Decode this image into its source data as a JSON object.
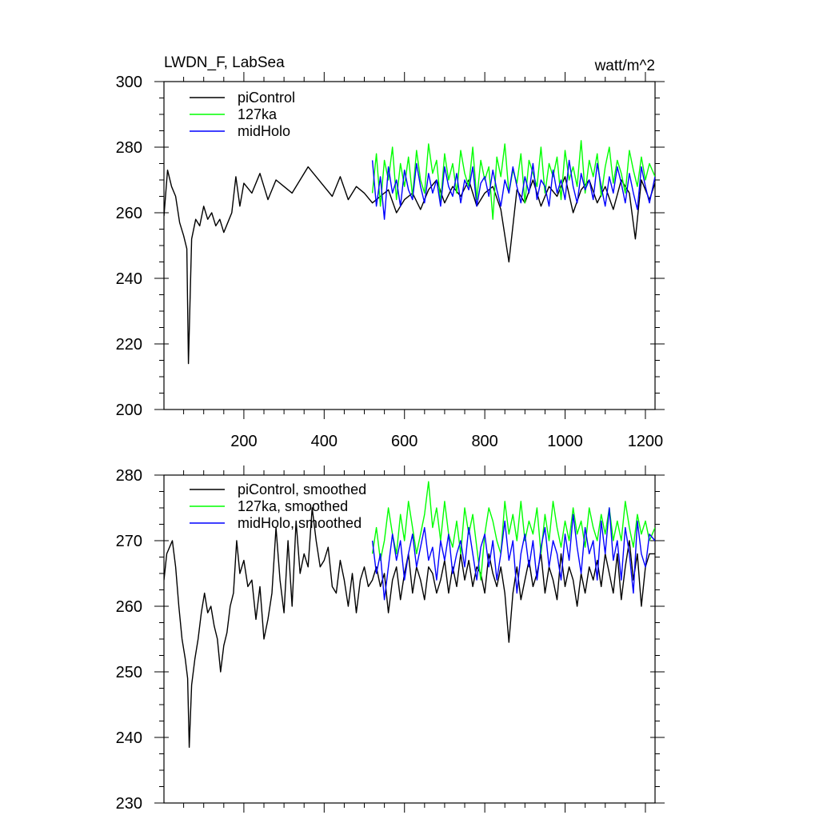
{
  "chart_data": [
    {
      "type": "line",
      "title": "LWDN_F, LabSea",
      "units": "watt/m^2",
      "xlabel": "",
      "ylabel": "",
      "xlim": [
        1,
        1224
      ],
      "ylim": [
        200,
        300
      ],
      "x_ticks": [
        200,
        400,
        600,
        800,
        1000,
        1200
      ],
      "x_tick_labels": [
        "200",
        "400",
        "600",
        "800",
        "1000",
        "1200"
      ],
      "y_ticks": [
        200,
        220,
        240,
        260,
        280,
        300
      ],
      "y_tick_labels": [
        "200",
        "220",
        "240",
        "260",
        "280",
        "300"
      ],
      "legend_position": "top-left",
      "series": [
        {
          "name": "piControl",
          "color": "#000000",
          "x": [
            1,
            10,
            20,
            30,
            40,
            50,
            58,
            62,
            70,
            80,
            90,
            100,
            110,
            120,
            130,
            140,
            150,
            160,
            170,
            180,
            190,
            200,
            220,
            240,
            260,
            280,
            300,
            320,
            340,
            360,
            380,
            400,
            420,
            440,
            460,
            480,
            500,
            520,
            540,
            560,
            580,
            600,
            620,
            640,
            660,
            680,
            700,
            720,
            740,
            760,
            780,
            800,
            820,
            840,
            860,
            880,
            900,
            920,
            940,
            960,
            980,
            1000,
            1020,
            1040,
            1060,
            1080,
            1100,
            1120,
            1140,
            1160,
            1175,
            1190,
            1210,
            1224
          ],
          "values": [
            259,
            273,
            268,
            265,
            257,
            253,
            249,
            214,
            252,
            258,
            256,
            262,
            258,
            260,
            256,
            258,
            254,
            257,
            260,
            271,
            262,
            269,
            266,
            272,
            264,
            270,
            268,
            266,
            270,
            274,
            271,
            268,
            265,
            271,
            264,
            268,
            266,
            263,
            265,
            267,
            260,
            264,
            266,
            261,
            267,
            270,
            263,
            268,
            265,
            270,
            262,
            266,
            268,
            261,
            245,
            267,
            263,
            270,
            262,
            268,
            265,
            271,
            260,
            267,
            270,
            263,
            268,
            261,
            270,
            266,
            252,
            270,
            264,
            269
          ]
        },
        {
          "name": "127ka",
          "color": "#00ff00",
          "x": [
            520,
            530,
            540,
            550,
            560,
            570,
            580,
            590,
            600,
            610,
            620,
            630,
            640,
            650,
            660,
            670,
            680,
            690,
            700,
            710,
            720,
            730,
            740,
            750,
            760,
            770,
            780,
            790,
            800,
            810,
            820,
            830,
            840,
            850,
            860,
            870,
            880,
            890,
            900,
            910,
            920,
            930,
            940,
            950,
            960,
            970,
            980,
            990,
            1000,
            1010,
            1020,
            1030,
            1040,
            1050,
            1060,
            1070,
            1080,
            1090,
            1100,
            1110,
            1120,
            1130,
            1140,
            1150,
            1160,
            1170,
            1180,
            1190,
            1200,
            1210,
            1224
          ],
          "values": [
            266,
            278,
            262,
            276,
            270,
            280,
            264,
            275,
            268,
            277,
            265,
            279,
            270,
            266,
            281,
            272,
            276,
            263,
            278,
            270,
            275,
            266,
            279,
            272,
            268,
            280,
            264,
            276,
            270,
            274,
            258,
            277,
            271,
            281,
            266,
            273,
            269,
            278,
            263,
            276,
            272,
            268,
            280,
            266,
            275,
            271,
            277,
            264,
            279,
            270,
            274,
            268,
            282,
            266,
            276,
            271,
            278,
            265,
            274,
            280,
            269,
            276,
            272,
            266,
            279,
            273,
            268,
            277,
            270,
            275,
            271
          ]
        },
        {
          "name": "midHolo",
          "color": "#0000ff",
          "x": [
            520,
            530,
            540,
            550,
            560,
            570,
            580,
            590,
            600,
            610,
            620,
            630,
            640,
            650,
            660,
            670,
            680,
            690,
            700,
            710,
            720,
            730,
            740,
            750,
            760,
            770,
            780,
            790,
            800,
            810,
            820,
            830,
            840,
            850,
            860,
            870,
            880,
            890,
            900,
            910,
            920,
            930,
            940,
            950,
            960,
            970,
            980,
            990,
            1000,
            1010,
            1020,
            1030,
            1040,
            1050,
            1060,
            1070,
            1080,
            1090,
            1100,
            1110,
            1120,
            1130,
            1140,
            1150,
            1160,
            1170,
            1180,
            1190,
            1200,
            1210,
            1224
          ],
          "values": [
            276,
            262,
            271,
            258,
            274,
            266,
            270,
            262,
            273,
            267,
            264,
            275,
            268,
            263,
            272,
            266,
            270,
            262,
            274,
            268,
            265,
            272,
            263,
            270,
            267,
            274,
            262,
            269,
            271,
            265,
            273,
            267,
            262,
            270,
            266,
            274,
            268,
            263,
            271,
            266,
            275,
            264,
            270,
            268,
            262,
            273,
            266,
            270,
            264,
            276,
            268,
            263,
            272,
            267,
            270,
            264,
            275,
            268,
            262,
            271,
            266,
            274,
            269,
            263,
            272,
            266,
            261,
            274,
            268,
            263,
            271
          ]
        }
      ]
    },
    {
      "type": "line",
      "title": "",
      "xlabel": "",
      "ylabel": "",
      "xlim": [
        1,
        1224
      ],
      "ylim": [
        230,
        280
      ],
      "x_ticks": [
        200,
        400,
        600,
        800,
        1000,
        1200
      ],
      "y_ticks": [
        230,
        240,
        250,
        260,
        270,
        280
      ],
      "y_tick_labels": [
        "230",
        "240",
        "250",
        "260",
        "270",
        "280"
      ],
      "legend_position": "top-left",
      "series": [
        {
          "name": "piControl, smoothed",
          "color": "#000000",
          "x": [
            1,
            8,
            15,
            22,
            30,
            38,
            46,
            54,
            60,
            64,
            70,
            78,
            86,
            94,
            102,
            110,
            118,
            126,
            134,
            142,
            150,
            158,
            166,
            174,
            182,
            190,
            200,
            210,
            220,
            230,
            240,
            250,
            260,
            270,
            280,
            290,
            300,
            310,
            320,
            330,
            340,
            350,
            360,
            370,
            380,
            390,
            400,
            410,
            420,
            430,
            440,
            450,
            460,
            470,
            480,
            490,
            500,
            510,
            520,
            530,
            540,
            550,
            560,
            570,
            580,
            590,
            600,
            610,
            620,
            630,
            640,
            650,
            660,
            670,
            680,
            690,
            700,
            710,
            720,
            730,
            740,
            750,
            760,
            770,
            780,
            790,
            800,
            810,
            820,
            830,
            840,
            850,
            860,
            870,
            880,
            890,
            900,
            910,
            920,
            930,
            940,
            950,
            960,
            970,
            980,
            990,
            1000,
            1010,
            1020,
            1030,
            1040,
            1050,
            1060,
            1070,
            1080,
            1090,
            1100,
            1110,
            1120,
            1130,
            1140,
            1150,
            1160,
            1170,
            1180,
            1190,
            1200,
            1210,
            1224
          ],
          "values": [
            264,
            268,
            269,
            270,
            266,
            260,
            255,
            252,
            249,
            238.5,
            248,
            252,
            255,
            259,
            262,
            259,
            260,
            257,
            255,
            250,
            254,
            256,
            260,
            262,
            270,
            265,
            267,
            263,
            264,
            258,
            263,
            255,
            258,
            262,
            272,
            264,
            259,
            270,
            260,
            273,
            265,
            268,
            266,
            275,
            270,
            266,
            267,
            269,
            263,
            262,
            267,
            264,
            260,
            265,
            259,
            264,
            266,
            263,
            264,
            266,
            263,
            265,
            259,
            264,
            266,
            261,
            265,
            268,
            262,
            266,
            264,
            261,
            266,
            265,
            262,
            264,
            267,
            262,
            266,
            263,
            268,
            264,
            267,
            263,
            266,
            265,
            262,
            268,
            265,
            263,
            266,
            262,
            254.5,
            262,
            266,
            261,
            264,
            267,
            263,
            265,
            268,
            262,
            266,
            264,
            261,
            268,
            263,
            266,
            264,
            260,
            265,
            262,
            266,
            264,
            267,
            263,
            268,
            265,
            262,
            268,
            261,
            266,
            270,
            264,
            268,
            260,
            266,
            268,
            268
          ]
        },
        {
          "name": "127ka, smoothed",
          "color": "#00ff00",
          "x": [
            520,
            530,
            540,
            550,
            560,
            570,
            580,
            590,
            600,
            610,
            620,
            630,
            640,
            650,
            660,
            670,
            680,
            690,
            700,
            710,
            720,
            730,
            740,
            750,
            760,
            770,
            780,
            790,
            800,
            810,
            820,
            830,
            840,
            850,
            860,
            870,
            880,
            890,
            900,
            910,
            920,
            930,
            940,
            950,
            960,
            970,
            980,
            990,
            1000,
            1010,
            1020,
            1030,
            1040,
            1050,
            1060,
            1070,
            1080,
            1090,
            1100,
            1110,
            1120,
            1130,
            1140,
            1150,
            1160,
            1170,
            1180,
            1190,
            1200,
            1210,
            1224
          ],
          "values": [
            268,
            272,
            267,
            270,
            275,
            271,
            268,
            274,
            270,
            276,
            272,
            268,
            271,
            274,
            279,
            272,
            275,
            270,
            276,
            271,
            269,
            273,
            268,
            275,
            271,
            274,
            269,
            264,
            271,
            275,
            273,
            270,
            268,
            276,
            271,
            274,
            270,
            276,
            270,
            273,
            271,
            275,
            268,
            274,
            270,
            276,
            272,
            269,
            273,
            270,
            275,
            271,
            273,
            269,
            275,
            272,
            270,
            274,
            271,
            275,
            270,
            273,
            270,
            276,
            272,
            269,
            274,
            271,
            273,
            270,
            272
          ]
        },
        {
          "name": "midHolo, smoothed",
          "color": "#0000ff",
          "x": [
            520,
            530,
            540,
            550,
            560,
            570,
            580,
            590,
            600,
            610,
            620,
            630,
            640,
            650,
            660,
            670,
            680,
            690,
            700,
            710,
            720,
            730,
            740,
            750,
            760,
            770,
            780,
            790,
            800,
            810,
            820,
            830,
            840,
            850,
            860,
            870,
            880,
            890,
            900,
            910,
            920,
            930,
            940,
            950,
            960,
            970,
            980,
            990,
            1000,
            1010,
            1020,
            1030,
            1040,
            1050,
            1060,
            1070,
            1080,
            1090,
            1100,
            1110,
            1120,
            1130,
            1140,
            1150,
            1160,
            1170,
            1180,
            1190,
            1200,
            1210,
            1224
          ],
          "values": [
            270,
            265,
            268,
            261,
            266,
            271,
            267,
            270,
            264,
            268,
            271,
            266,
            269,
            272,
            267,
            269,
            264,
            270,
            267,
            271,
            265,
            268,
            270,
            266,
            272,
            268,
            264,
            269,
            271,
            266,
            270,
            264,
            268,
            273,
            267,
            270,
            262,
            268,
            271,
            266,
            270,
            264,
            269,
            272,
            266,
            270,
            268,
            264,
            271,
            267,
            274,
            269,
            265,
            272,
            268,
            270,
            264,
            273,
            268,
            275,
            267,
            270,
            264,
            272,
            268,
            262,
            273,
            268,
            266,
            271,
            270
          ]
        }
      ]
    }
  ]
}
